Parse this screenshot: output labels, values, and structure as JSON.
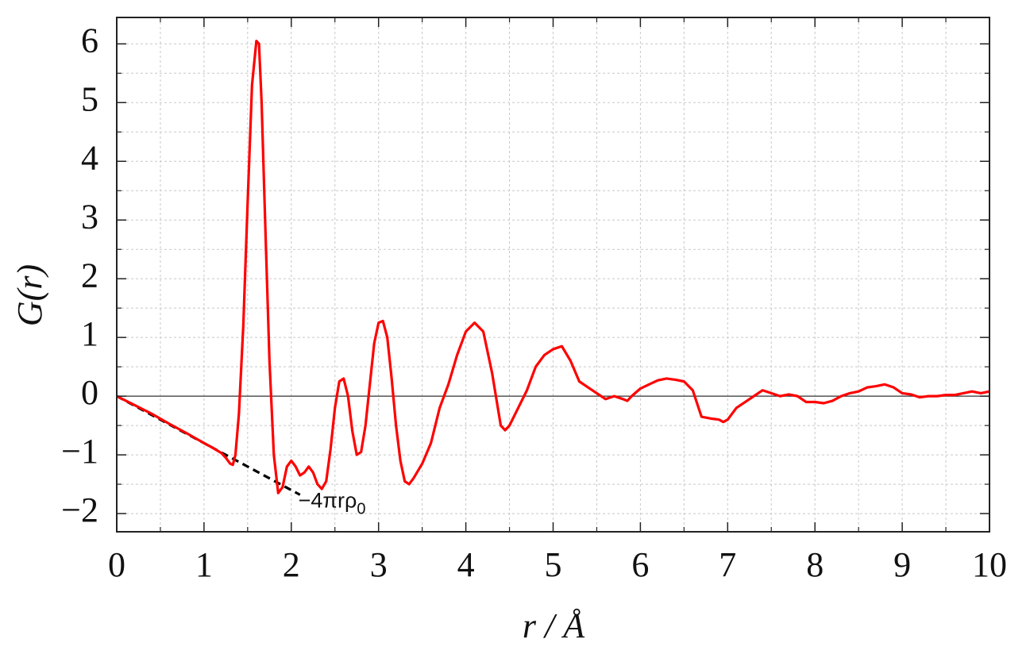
{
  "chart_data": {
    "type": "line",
    "x_label": "r / Å",
    "y_label": "G(r)",
    "annotation": {
      "text": "−4πrρ",
      "subscript": "0",
      "x": 2.08,
      "y": -1.9
    },
    "xlim": [
      0,
      10
    ],
    "ylim": [
      -2.31,
      6.45
    ],
    "xticks": [
      0,
      1,
      2,
      3,
      4,
      5,
      6,
      7,
      8,
      9,
      10
    ],
    "yticks": [
      {
        "value": -2,
        "label": "−2"
      },
      {
        "value": -1,
        "label": "−1"
      },
      0,
      1,
      2,
      3,
      4,
      5,
      6
    ],
    "xminorticks": [
      0.5,
      1.5,
      2.5,
      3.5,
      4.5,
      5.5,
      6.5,
      7.5,
      8.5,
      9.5
    ],
    "yminorticks": [
      -1.5,
      -0.5,
      0.5,
      1.5,
      2.5,
      3.5,
      4.5,
      5.5
    ],
    "grid": true,
    "zero_line": true,
    "series": [
      {
        "color": "#ff0000",
        "style": "solid",
        "x": [
          0,
          0.2,
          0.4,
          0.6,
          0.8,
          1.0,
          1.1,
          1.2,
          1.25,
          1.3,
          1.33,
          1.36,
          1.4,
          1.45,
          1.5,
          1.55,
          1.6,
          1.63,
          1.66,
          1.7,
          1.75,
          1.8,
          1.85,
          1.9,
          1.95,
          2.0,
          2.05,
          2.1,
          2.15,
          2.2,
          2.25,
          2.3,
          2.35,
          2.4,
          2.45,
          2.5,
          2.55,
          2.6,
          2.65,
          2.7,
          2.75,
          2.8,
          2.85,
          2.9,
          2.95,
          3.0,
          3.05,
          3.1,
          3.15,
          3.2,
          3.25,
          3.3,
          3.35,
          3.4,
          3.5,
          3.6,
          3.7,
          3.8,
          3.9,
          4.0,
          4.1,
          4.2,
          4.3,
          4.4,
          4.45,
          4.5,
          4.6,
          4.7,
          4.8,
          4.9,
          5.0,
          5.1,
          5.2,
          5.3,
          5.4,
          5.5,
          5.6,
          5.7,
          5.8,
          5.85,
          5.9,
          6.0,
          6.1,
          6.2,
          6.3,
          6.4,
          6.5,
          6.6,
          6.7,
          6.8,
          6.9,
          6.95,
          7.0,
          7.1,
          7.2,
          7.3,
          7.4,
          7.5,
          7.6,
          7.7,
          7.8,
          7.9,
          8.0,
          8.1,
          8.2,
          8.3,
          8.4,
          8.5,
          8.6,
          8.7,
          8.8,
          8.9,
          9.0,
          9.1,
          9.2,
          9.3,
          9.4,
          9.5,
          9.6,
          9.7,
          9.8,
          9.9,
          10.0
        ],
        "values": [
          0,
          -0.15,
          -0.3,
          -0.47,
          -0.63,
          -0.8,
          -0.88,
          -0.97,
          -1.05,
          -1.15,
          -1.17,
          -1.0,
          -0.3,
          1.2,
          3.3,
          5.3,
          6.05,
          6.0,
          5.0,
          3.0,
          0.6,
          -1.0,
          -1.65,
          -1.55,
          -1.2,
          -1.1,
          -1.2,
          -1.35,
          -1.3,
          -1.2,
          -1.3,
          -1.5,
          -1.58,
          -1.45,
          -0.9,
          -0.2,
          0.25,
          0.3,
          0.0,
          -0.6,
          -1.0,
          -0.95,
          -0.5,
          0.2,
          0.9,
          1.25,
          1.28,
          1.0,
          0.3,
          -0.5,
          -1.1,
          -1.45,
          -1.5,
          -1.4,
          -1.15,
          -0.8,
          -0.2,
          0.2,
          0.7,
          1.1,
          1.25,
          1.1,
          0.4,
          -0.5,
          -0.58,
          -0.5,
          -0.2,
          0.1,
          0.5,
          0.7,
          0.8,
          0.85,
          0.6,
          0.25,
          0.15,
          0.05,
          -0.05,
          0.0,
          -0.05,
          -0.08,
          0.0,
          0.13,
          0.2,
          0.27,
          0.3,
          0.28,
          0.25,
          0.1,
          -0.35,
          -0.38,
          -0.4,
          -0.44,
          -0.4,
          -0.2,
          -0.1,
          0.0,
          0.1,
          0.05,
          0.0,
          0.03,
          0.0,
          -0.1,
          -0.1,
          -0.12,
          -0.08,
          0.0,
          0.05,
          0.08,
          0.15,
          0.17,
          0.2,
          0.15,
          0.05,
          0.03,
          -0.02,
          0.0,
          0.0,
          0.02,
          0.02,
          0.05,
          0.08,
          0.05,
          0.08
        ]
      },
      {
        "color": "#000000",
        "style": "dashed",
        "x": [
          0,
          2.1
        ],
        "values": [
          0,
          -1.68
        ]
      }
    ]
  }
}
